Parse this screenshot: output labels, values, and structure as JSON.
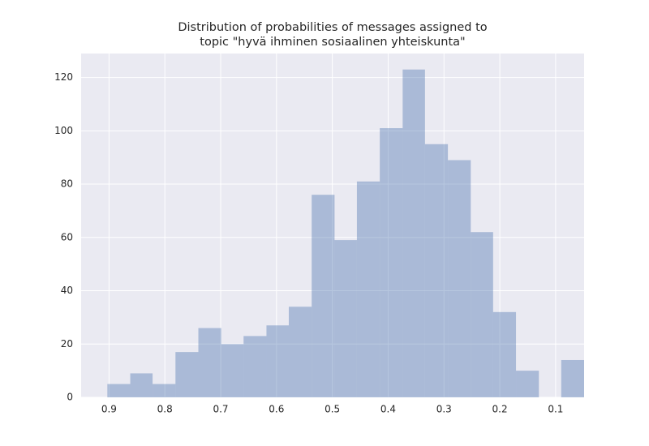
{
  "chart_data": {
    "type": "histogram",
    "title": [
      "Distribution of probabilities of messages assigned to",
      "topic \"hyvä ihminen sosiaalinen yhteiskunta\""
    ],
    "bins": [
      0.903,
      0.862,
      0.822,
      0.781,
      0.74,
      0.699,
      0.659,
      0.618,
      0.578,
      0.537,
      0.496,
      0.456,
      0.415,
      0.374,
      0.334,
      0.293,
      0.252,
      0.212,
      0.171,
      0.13,
      0.09,
      0.049
    ],
    "values": [
      5,
      9,
      5,
      17,
      26,
      20,
      23,
      27,
      34,
      76,
      59,
      81,
      101,
      123,
      95,
      89,
      62,
      32,
      10,
      0,
      14
    ],
    "color": "#4c72b0",
    "opacity": 0.4,
    "xlim": [
      0.95,
      0.049
    ],
    "xticks": [
      0.9,
      0.8,
      0.7,
      0.6,
      0.5,
      0.4,
      0.3,
      0.2,
      0.1
    ],
    "ylim": [
      0,
      129
    ],
    "yticks": [
      0,
      20,
      40,
      60,
      80,
      100,
      120
    ],
    "grid": true
  }
}
